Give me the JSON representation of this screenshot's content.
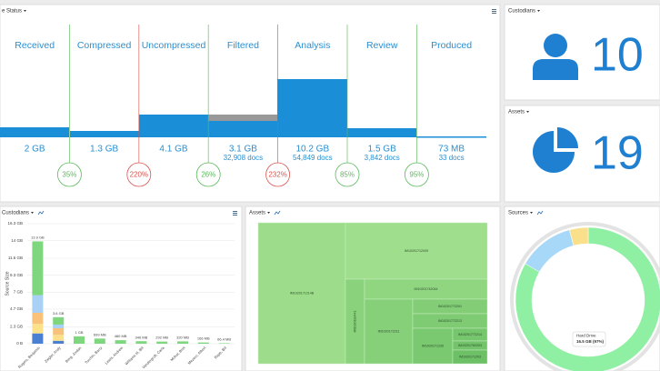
{
  "status_panel": {
    "title": "e Status",
    "stages": [
      {
        "name": "Received",
        "size": "2 GB"
      },
      {
        "name": "Compressed",
        "size": "1.3 GB"
      },
      {
        "name": "Uncompressed",
        "size": "4.1 GB"
      },
      {
        "name": "Filtered",
        "size": "3.1 GB",
        "docs": "32,908 docs"
      },
      {
        "name": "Analysis",
        "size": "10.2 GB",
        "docs": "54,849 docs"
      },
      {
        "name": "Review",
        "size": "1.5 GB",
        "docs": "3,842 docs"
      },
      {
        "name": "Produced",
        "size": "73 MB",
        "docs": "33 docs"
      }
    ],
    "ratios": [
      {
        "label": "35%",
        "color": "#5cb85c"
      },
      {
        "label": "220%",
        "color": "#d9534f"
      },
      {
        "label": "26%",
        "color": "#5cb85c"
      },
      {
        "label": "232%",
        "color": "#d9534f"
      },
      {
        "label": "85%",
        "color": "#5cb85c"
      },
      {
        "label": "95%",
        "color": "#5cb85c"
      }
    ]
  },
  "custodians_panel": {
    "title": "Custodians",
    "count": "10"
  },
  "assets_panel": {
    "title": "Assets",
    "count": "19"
  },
  "custodian_chart_title": "Custodians",
  "chart_data": {
    "type": "bar",
    "y_label": "Source Size",
    "categories": [
      "Rogers, Benjamin",
      "Ziegler, Andy",
      "Berg, Jordan",
      "Turchin, Barry",
      "Lewis, Andrew",
      "Williams III, Bill",
      "Vandergroft, Carla",
      "Mohar, Bret",
      "Mezero, Albert",
      "Rapp, Bill"
    ],
    "series": [
      {
        "color": "#4a7fd4",
        "values": [
          1.4,
          0.4,
          0,
          0,
          0,
          0,
          0,
          0,
          0,
          0
        ]
      },
      {
        "color": "#fde08a",
        "values": [
          1.3,
          0.8,
          0,
          0,
          0,
          0,
          0,
          0,
          0,
          0
        ]
      },
      {
        "color": "#f9c27a",
        "values": [
          1.5,
          0.9,
          0,
          0,
          0,
          0,
          0,
          0,
          0,
          0
        ]
      },
      {
        "color": "#a9d0f5",
        "values": [
          2.4,
          0.5,
          0,
          0,
          0,
          0,
          0,
          0,
          0,
          0
        ]
      },
      {
        "color": "#7ed67e",
        "values": [
          7.3,
          1.0,
          1,
          0.699,
          0.48,
          0.346,
          0.292,
          0.32,
          0.166,
          0.0664
        ]
      }
    ],
    "value_labels": [
      "13.9 GB",
      "3.6 GB",
      "1 GB",
      "699 MB",
      "480 MB",
      "346 MB",
      "292 MB",
      "320 MB",
      "166 MB",
      "66.4 MB"
    ],
    "ylim": [
      0,
      16.3
    ],
    "yticks": [
      {
        "value": 0,
        "label": "0 B"
      },
      {
        "value": 2.3,
        "label": "2.3 GB"
      },
      {
        "value": 4.7,
        "label": "4.7 GB"
      },
      {
        "value": 7,
        "label": "7 GB"
      },
      {
        "value": 9.3,
        "label": "9.3 GB"
      },
      {
        "value": 11.6,
        "label": "11.6 GB"
      },
      {
        "value": 14,
        "label": "14 GB"
      },
      {
        "value": 16.3,
        "label": "16.3 GB"
      }
    ],
    "grid": true
  },
  "treemap": {
    "title": "Assets",
    "labels": [
      "IM1020171214B",
      "IM10201712009",
      "IM1020182441",
      "IM10201742044",
      "IM1020172211",
      "IM10201772201",
      "IM10201772213",
      "IM1020171235",
      "IM10201772214",
      "IM10201762203",
      "IM1020171203"
    ]
  },
  "sources": {
    "title": "Sources",
    "tooltip_name": "Hard Drive",
    "tooltip_value": "16.5 GB (97%)"
  }
}
